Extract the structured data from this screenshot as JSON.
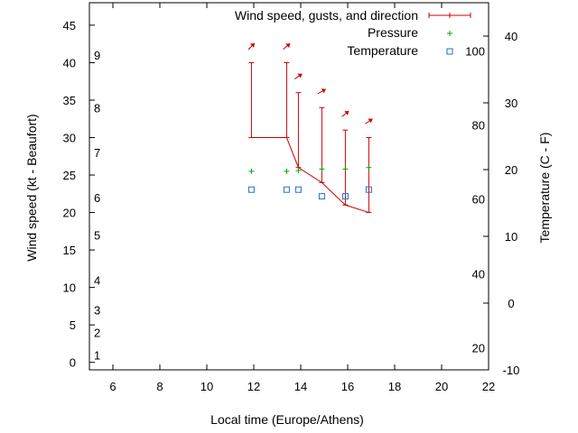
{
  "chart_data": {
    "type": "line",
    "xlabel": "Local time (Europe/Athens)",
    "ylabel_left": "Wind speed (kt - Beaufort)",
    "ylabel_right": "Temperature (C - F)",
    "xlim": [
      5,
      22
    ],
    "ylim_left": [
      -1,
      48
    ],
    "ylim_right": [
      -10,
      45
    ],
    "x_ticks": [
      6,
      8,
      10,
      12,
      14,
      16,
      18,
      20,
      22
    ],
    "y_left_ticks": [
      0,
      5,
      10,
      15,
      20,
      25,
      30,
      35,
      40,
      45
    ],
    "y_right_ticks": [
      -10,
      0,
      10,
      20,
      30,
      40
    ],
    "beaufort_labels": [
      {
        "label": "1",
        "kt": 1
      },
      {
        "label": "2",
        "kt": 4
      },
      {
        "label": "3",
        "kt": 7
      },
      {
        "label": "4",
        "kt": 11
      },
      {
        "label": "5",
        "kt": 17
      },
      {
        "label": "6",
        "kt": 22
      },
      {
        "label": "7",
        "kt": 28
      },
      {
        "label": "8",
        "kt": 34
      },
      {
        "label": "9",
        "kt": 41
      }
    ],
    "fahrenheit_labels": [
      {
        "label": "20",
        "c": -6.7
      },
      {
        "label": "40",
        "c": 4.4
      },
      {
        "label": "60",
        "c": 15.6
      },
      {
        "label": "80",
        "c": 26.7
      },
      {
        "label": "100",
        "c": 37.8
      }
    ],
    "legend": {
      "wind": "Wind speed, gusts, and direction",
      "pressure": "Pressure",
      "temperature": "Temperature"
    },
    "series": [
      {
        "name": "Wind speed, gusts, and direction",
        "points": [
          {
            "x": 11.9,
            "speed": 30,
            "gust": 40,
            "dir_deg": 225
          },
          {
            "x": 13.4,
            "speed": 30,
            "gust": 40,
            "dir_deg": 230
          },
          {
            "x": 13.9,
            "speed": 26,
            "gust": 36,
            "dir_deg": 235
          },
          {
            "x": 14.9,
            "speed": 24,
            "gust": 34,
            "dir_deg": 240
          },
          {
            "x": 15.9,
            "speed": 21,
            "gust": 31,
            "dir_deg": 230
          },
          {
            "x": 16.9,
            "speed": 20,
            "gust": 30,
            "dir_deg": 235
          }
        ]
      },
      {
        "name": "Pressure",
        "points": [
          {
            "x": 11.9,
            "y": 25.5
          },
          {
            "x": 13.4,
            "y": 25.5
          },
          {
            "x": 13.9,
            "y": 25.6
          },
          {
            "x": 14.9,
            "y": 25.8
          },
          {
            "x": 15.9,
            "y": 25.8
          },
          {
            "x": 16.9,
            "y": 26.0
          }
        ]
      },
      {
        "name": "Temperature",
        "points": [
          {
            "x": 11.9,
            "y": 17
          },
          {
            "x": 13.4,
            "y": 17
          },
          {
            "x": 13.9,
            "y": 17
          },
          {
            "x": 14.9,
            "y": 16
          },
          {
            "x": 15.9,
            "y": 16
          },
          {
            "x": 16.9,
            "y": 17
          }
        ]
      }
    ],
    "colors": {
      "wind": "#cc0000",
      "pressure": "#00aa00",
      "temperature": "#1f6fd0",
      "axis": "#000000"
    },
    "grid": false,
    "legend_position": "top-right"
  }
}
